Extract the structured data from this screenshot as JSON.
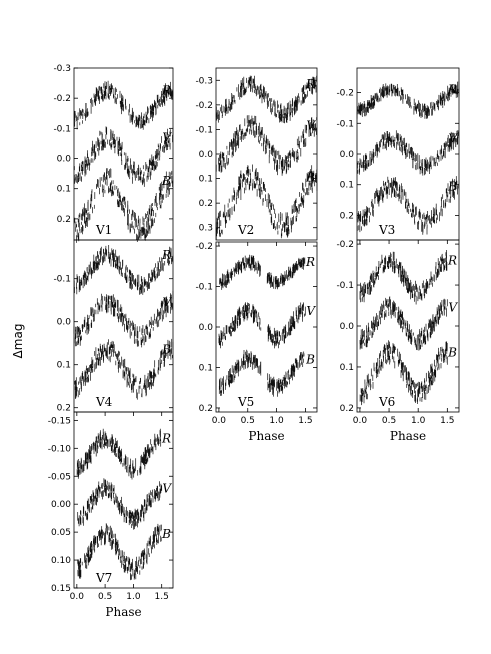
{
  "figure": {
    "ylabel": "Δmag",
    "xlabel": "Phase"
  },
  "chart_data": [
    {
      "type": "scatter",
      "panel": "V1",
      "xlim": [
        0.0,
        1.5
      ],
      "ylim": [
        0.27,
        -0.3
      ],
      "yticks": [
        -0.3,
        -0.2,
        -0.1,
        0.0,
        0.1,
        0.2
      ],
      "yticklabels": [
        "-0.3",
        "-0.2",
        "-0.1",
        "0.0",
        "0.1",
        "0.2"
      ],
      "xticks": [],
      "series": [
        {
          "name": "R",
          "offset": -0.175,
          "amplitude": 0.05
        },
        {
          "name": "V",
          "offset": -0.005,
          "amplitude": 0.065
        },
        {
          "name": "B",
          "offset": 0.155,
          "amplitude": 0.08
        }
      ]
    },
    {
      "type": "scatter",
      "panel": "V2",
      "xlim": [
        0.0,
        1.5
      ],
      "ylim": [
        0.35,
        -0.35
      ],
      "yticks": [
        -0.3,
        -0.2,
        -0.1,
        0.0,
        0.1,
        0.2,
        0.3
      ],
      "yticklabels": [
        "-0.3",
        "-0.2",
        "-0.1",
        "0.0",
        "0.1",
        "0.2",
        "0.3"
      ],
      "xticks": [],
      "series": [
        {
          "name": "R",
          "offset": -0.225,
          "amplitude": 0.06
        },
        {
          "name": "V",
          "offset": -0.035,
          "amplitude": 0.08
        },
        {
          "name": "B",
          "offset": 0.195,
          "amplitude": 0.1
        }
      ]
    },
    {
      "type": "scatter",
      "panel": "V3",
      "xlim": [
        0.0,
        1.5
      ],
      "ylim": [
        0.28,
        -0.28
      ],
      "yticks": [
        -0.2,
        -0.1,
        0.0,
        0.1,
        0.2
      ],
      "yticklabels": [
        "-0.2",
        "-0.1",
        "0.0",
        "0.1",
        "0.2"
      ],
      "xticks": [],
      "series": [
        {
          "name": "R",
          "offset": -0.175,
          "amplitude": 0.035
        },
        {
          "name": "V",
          "offset": -0.005,
          "amplitude": 0.045
        },
        {
          "name": "B",
          "offset": 0.165,
          "amplitude": 0.06
        }
      ]
    },
    {
      "type": "scatter",
      "panel": "V4",
      "xlim": [
        0.0,
        1.5
      ],
      "ylim": [
        0.21,
        -0.19
      ],
      "yticks": [
        -0.1,
        0.0,
        0.1,
        0.2
      ],
      "yticklabels": [
        "-0.1",
        "0.0",
        "0.1",
        "0.2"
      ],
      "xticks": [],
      "series": [
        {
          "name": "R",
          "offset": -0.12,
          "amplitude": 0.035
        },
        {
          "name": "V",
          "offset": -0.005,
          "amplitude": 0.04
        },
        {
          "name": "B",
          "offset": 0.11,
          "amplitude": 0.045
        }
      ]
    },
    {
      "type": "scatter",
      "panel": "V5",
      "xlim": [
        -0.05,
        1.7
      ],
      "ylim": [
        0.21,
        -0.21
      ],
      "yticks": [
        -0.2,
        -0.1,
        0.0,
        0.1,
        0.2
      ],
      "yticklabels": [
        "-0.2",
        "-0.1",
        "0.0",
        "0.1",
        "0.2"
      ],
      "xticks": [
        0.0,
        0.5,
        1.0,
        1.5
      ],
      "xticklabels": [
        "0.0",
        "0.5",
        "1.0",
        "1.5"
      ],
      "xlabel": "Phase",
      "gap": [
        0.73,
        0.83
      ],
      "series": [
        {
          "name": "R",
          "offset": -0.135,
          "amplitude": 0.025
        },
        {
          "name": "V",
          "offset": -0.005,
          "amplitude": 0.035
        },
        {
          "name": "B",
          "offset": 0.115,
          "amplitude": 0.035
        }
      ]
    },
    {
      "type": "scatter",
      "panel": "V6",
      "xlim": [
        -0.05,
        1.7
      ],
      "ylim": [
        0.21,
        -0.21
      ],
      "yticks": [
        -0.2,
        -0.1,
        0.0,
        0.1,
        0.2
      ],
      "yticklabels": [
        "-0.2",
        "-0.1",
        "0.0",
        "0.1",
        "0.2"
      ],
      "xticks": [
        0.0,
        0.5,
        1.0,
        1.5
      ],
      "xticklabels": [
        "0.0",
        "0.5",
        "1.0",
        "1.5"
      ],
      "xlabel": "Phase",
      "series": [
        {
          "name": "R",
          "offset": -0.12,
          "amplitude": 0.04
        },
        {
          "name": "V",
          "offset": -0.005,
          "amplitude": 0.04
        },
        {
          "name": "B",
          "offset": 0.115,
          "amplitude": 0.05
        }
      ]
    },
    {
      "type": "scatter",
      "panel": "V7",
      "xlim": [
        -0.05,
        1.7
      ],
      "ylim": [
        0.15,
        -0.165
      ],
      "yticks": [
        -0.15,
        -0.1,
        -0.05,
        0.0,
        0.05,
        0.1,
        0.15
      ],
      "yticklabels": [
        "-0.15",
        "-0.10",
        "-0.05",
        "0.00",
        "0.05",
        "0.10",
        "0.15"
      ],
      "xticks": [
        0.0,
        0.5,
        1.0,
        1.5
      ],
      "xticklabels": [
        "0.0",
        "0.5",
        "1.0",
        "1.5"
      ],
      "xlabel": "Phase",
      "series": [
        {
          "name": "R",
          "offset": -0.09,
          "amplitude": 0.028
        },
        {
          "name": "V",
          "offset": -0.0,
          "amplitude": 0.028
        },
        {
          "name": "B",
          "offset": 0.085,
          "amplitude": 0.032
        }
      ]
    }
  ]
}
